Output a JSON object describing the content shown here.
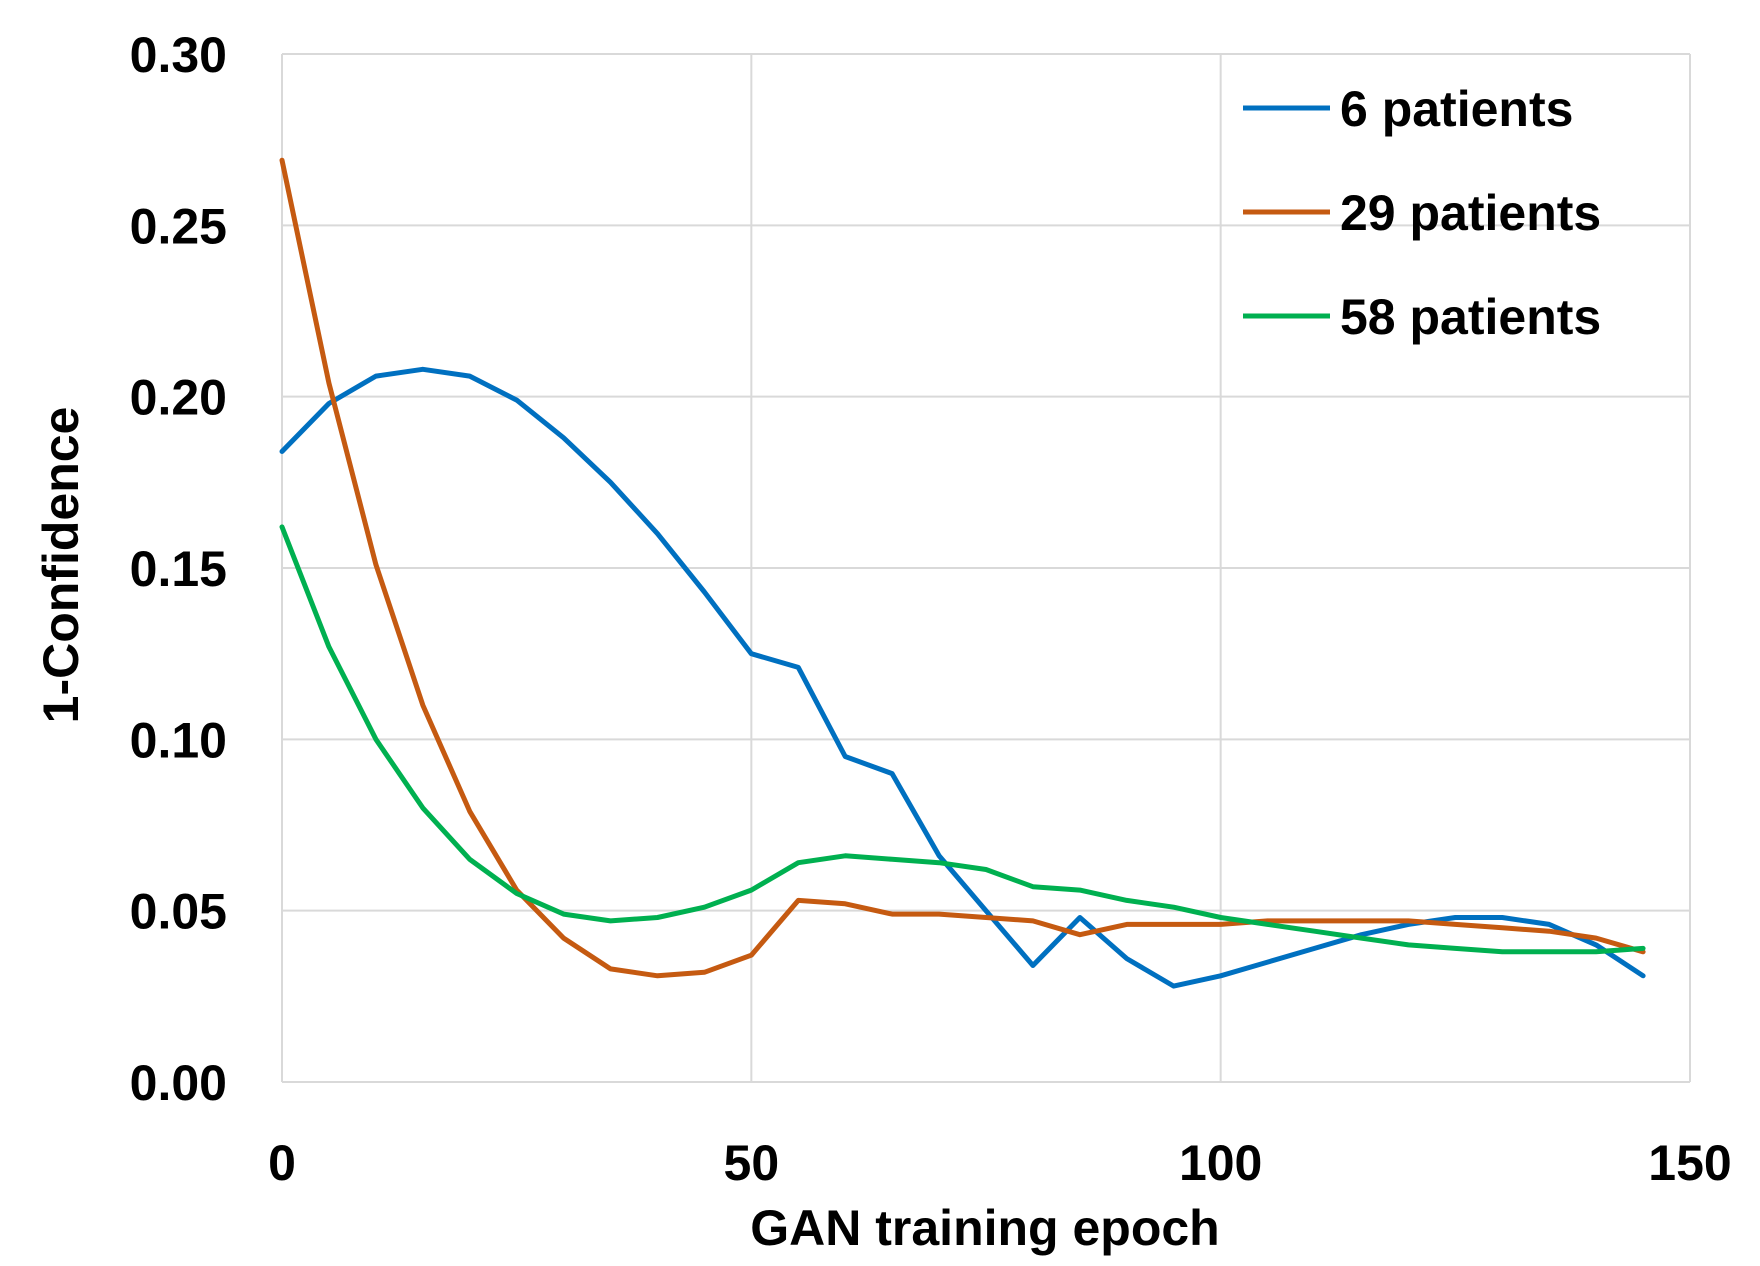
{
  "chart_data": {
    "type": "line",
    "title": "",
    "xlabel": "GAN training epoch",
    "ylabel": "1-Confidence",
    "xlim": [
      0,
      150
    ],
    "ylim": [
      0,
      0.3
    ],
    "x_ticks": [
      0,
      50,
      100,
      150
    ],
    "x_tick_labels": [
      "0",
      "50",
      "100",
      "150"
    ],
    "y_ticks": [
      0,
      0.05,
      0.1,
      0.15,
      0.2,
      0.25,
      0.3
    ],
    "y_tick_labels": [
      "0.00",
      "0.05",
      "0.10",
      "0.15",
      "0.20",
      "0.25",
      "0.30"
    ],
    "grid": true,
    "legend_position": "top-right",
    "x": [
      0,
      5,
      10,
      15,
      20,
      25,
      30,
      35,
      40,
      45,
      50,
      55,
      60,
      65,
      70,
      75,
      80,
      85,
      90,
      95,
      100,
      105,
      110,
      115,
      120,
      125,
      130,
      135,
      140,
      145
    ],
    "series": [
      {
        "name": "6 patients",
        "color": "#0070c0",
        "values": [
          0.184,
          0.198,
          0.206,
          0.208,
          0.206,
          0.199,
          0.188,
          0.175,
          0.16,
          0.143,
          0.125,
          0.121,
          0.095,
          0.09,
          0.066,
          0.05,
          0.034,
          0.048,
          0.036,
          0.028,
          0.031,
          0.035,
          0.039,
          0.043,
          0.046,
          0.048,
          0.048,
          0.046,
          0.04,
          0.031
        ]
      },
      {
        "name": "29 patients",
        "color": "#c55a11",
        "values": [
          0.269,
          0.204,
          0.151,
          0.11,
          0.079,
          0.056,
          0.042,
          0.033,
          0.031,
          0.032,
          0.037,
          0.053,
          0.052,
          0.049,
          0.049,
          0.048,
          0.047,
          0.043,
          0.046,
          0.046,
          0.046,
          0.047,
          0.047,
          0.047,
          0.047,
          0.046,
          0.045,
          0.044,
          0.042,
          0.038
        ]
      },
      {
        "name": "58 patients",
        "color": "#00b050",
        "values": [
          0.162,
          0.127,
          0.1,
          0.08,
          0.065,
          0.055,
          0.049,
          0.047,
          0.048,
          0.051,
          0.056,
          0.064,
          0.066,
          0.065,
          0.064,
          0.062,
          0.057,
          0.056,
          0.053,
          0.051,
          0.048,
          0.046,
          0.044,
          0.042,
          0.04,
          0.039,
          0.038,
          0.038,
          0.038,
          0.039
        ]
      }
    ]
  }
}
